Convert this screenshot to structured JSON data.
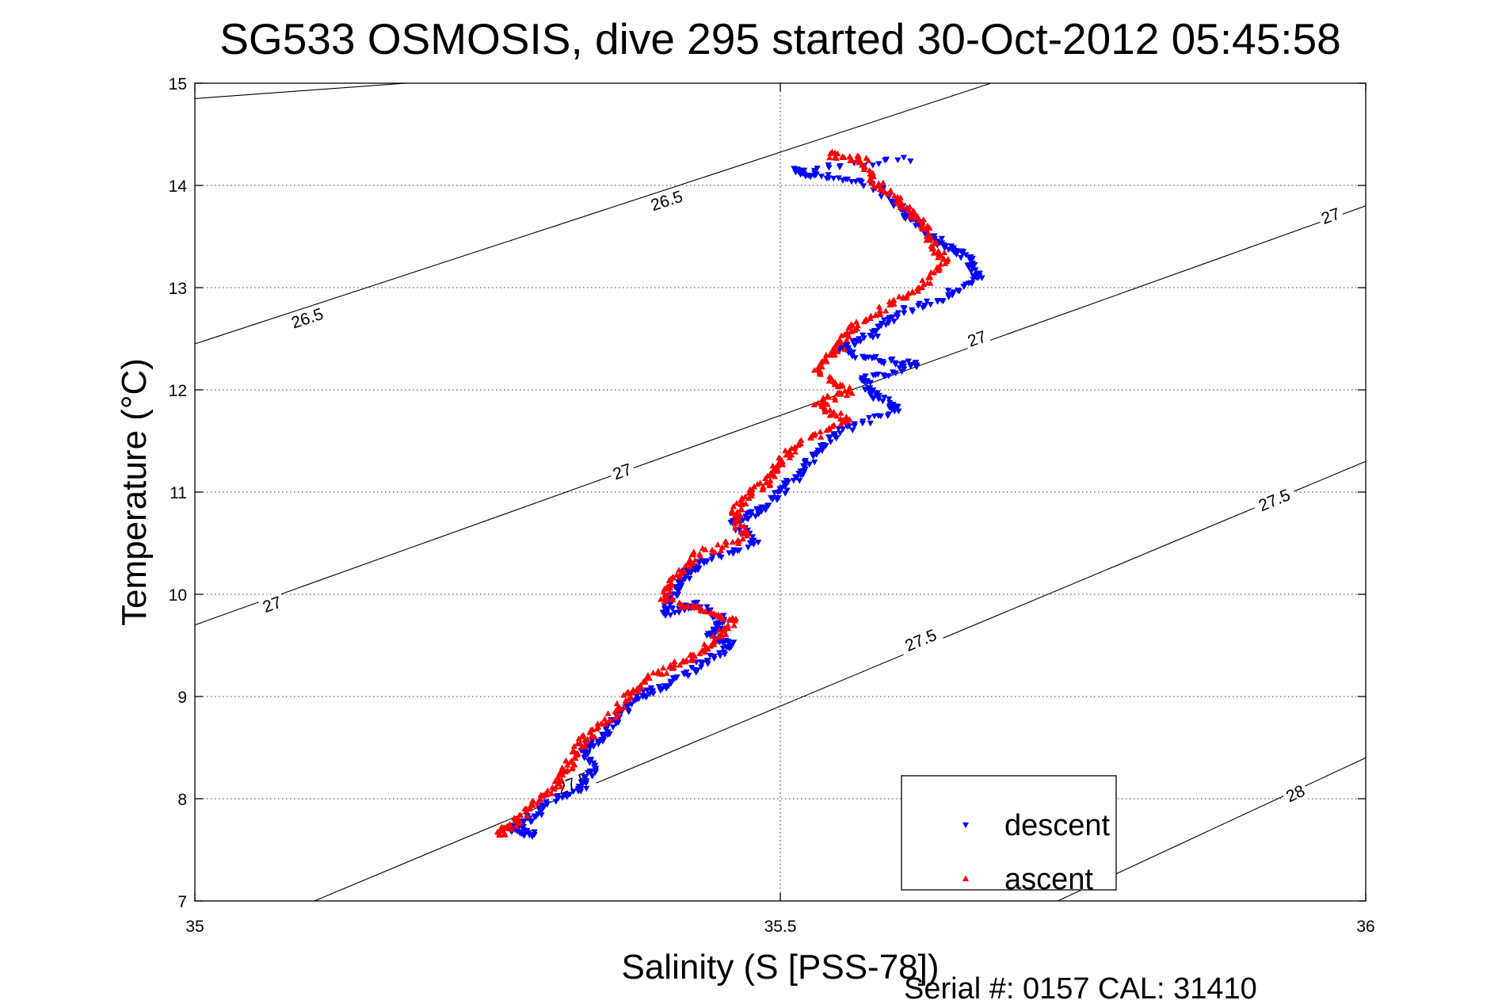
{
  "chart_data": {
    "type": "scatter",
    "title": "SG533 OSMOSIS, dive 295 started 30-Oct-2012 05:45:58",
    "xlabel": "Salinity (S [PSS-78])",
    "ylabel": "Temperature (°C)",
    "xlim": [
      35,
      36
    ],
    "ylim": [
      7,
      15
    ],
    "x_ticks": [
      35,
      35.5,
      36
    ],
    "x_tick_labels": [
      "35",
      "35.5",
      "36"
    ],
    "y_ticks": [
      7,
      8,
      9,
      10,
      11,
      12,
      13,
      14,
      15
    ],
    "y_tick_labels": [
      "7",
      "8",
      "9",
      "10",
      "11",
      "12",
      "13",
      "14",
      "15"
    ],
    "grid": true,
    "legend_position": "bottom-right",
    "footer": "Serial #: 0157  CAL: 31410",
    "density_contours": [
      {
        "sigma": 26.5,
        "points": [
          [
            35.0,
            14.85
          ],
          [
            35.18,
            15.0
          ]
        ],
        "labels": []
      },
      {
        "sigma": 26.5,
        "points": [
          [
            35.0,
            12.45
          ],
          [
            35.68,
            15.0
          ]
        ],
        "labels": [
          {
            "text": "26.5",
            "x": 35.096,
            "y": 12.7
          },
          {
            "text": "26.5",
            "x": 35.403,
            "y": 13.85
          }
        ]
      },
      {
        "sigma": 27,
        "points": [
          [
            35.0,
            9.7
          ],
          [
            36.0,
            13.8
          ]
        ],
        "labels": [
          {
            "text": "27",
            "x": 35.066,
            "y": 9.9
          },
          {
            "text": "27",
            "x": 35.365,
            "y": 11.2
          },
          {
            "text": "27",
            "x": 35.668,
            "y": 12.5
          },
          {
            "text": "27",
            "x": 35.97,
            "y": 13.7
          }
        ]
      },
      {
        "sigma": 27.5,
        "points": [
          [
            35.102,
            7.0
          ],
          [
            36.0,
            11.3
          ]
        ],
        "labels": [
          {
            "text": "27.5",
            "x": 35.323,
            "y": 8.15
          },
          {
            "text": "27.5",
            "x": 35.62,
            "y": 9.55
          },
          {
            "text": "27.5",
            "x": 35.922,
            "y": 10.92
          }
        ]
      },
      {
        "sigma": 28,
        "points": [
          [
            35.737,
            7.0
          ],
          [
            36.0,
            8.4
          ]
        ],
        "labels": [
          {
            "text": "28",
            "x": 35.94,
            "y": 8.05
          }
        ]
      }
    ],
    "series": [
      {
        "name": "descent",
        "color": "#0000ff",
        "marker": "triangle-down",
        "path": [
          [
            35.61,
            14.25
          ],
          [
            35.51,
            14.15
          ],
          [
            35.53,
            14.1
          ],
          [
            35.58,
            14.0
          ],
          [
            35.6,
            13.8
          ],
          [
            35.62,
            13.6
          ],
          [
            35.64,
            13.4
          ],
          [
            35.66,
            13.3
          ],
          [
            35.67,
            13.1
          ],
          [
            35.64,
            12.9
          ],
          [
            35.6,
            12.75
          ],
          [
            35.58,
            12.55
          ],
          [
            35.55,
            12.4
          ],
          [
            35.58,
            12.3
          ],
          [
            35.62,
            12.25
          ],
          [
            35.57,
            12.1
          ],
          [
            35.58,
            11.95
          ],
          [
            35.6,
            11.8
          ],
          [
            35.55,
            11.6
          ],
          [
            35.53,
            11.4
          ],
          [
            35.52,
            11.2
          ],
          [
            35.5,
            11.0
          ],
          [
            35.48,
            10.8
          ],
          [
            35.46,
            10.7
          ],
          [
            35.48,
            10.5
          ],
          [
            35.43,
            10.3
          ],
          [
            35.42,
            10.2
          ],
          [
            35.41,
            10.0
          ],
          [
            35.4,
            9.8
          ],
          [
            35.43,
            9.9
          ],
          [
            35.45,
            9.75
          ],
          [
            35.44,
            9.6
          ],
          [
            35.46,
            9.5
          ],
          [
            35.43,
            9.3
          ],
          [
            35.4,
            9.1
          ],
          [
            35.38,
            9.0
          ],
          [
            35.36,
            8.8
          ],
          [
            35.35,
            8.6
          ],
          [
            35.33,
            8.5
          ],
          [
            35.34,
            8.3
          ],
          [
            35.33,
            8.1
          ],
          [
            35.3,
            7.95
          ],
          [
            35.28,
            7.75
          ],
          [
            35.27,
            7.7
          ],
          [
            35.29,
            7.65
          ]
        ]
      },
      {
        "name": "ascent",
        "color": "#ff0000",
        "marker": "triangle-up",
        "path": [
          [
            35.54,
            14.3
          ],
          [
            35.57,
            14.25
          ],
          [
            35.58,
            14.05
          ],
          [
            35.6,
            13.85
          ],
          [
            35.62,
            13.65
          ],
          [
            35.63,
            13.45
          ],
          [
            35.64,
            13.25
          ],
          [
            35.62,
            13.0
          ],
          [
            35.59,
            12.8
          ],
          [
            35.56,
            12.6
          ],
          [
            35.55,
            12.4
          ],
          [
            35.53,
            12.2
          ],
          [
            35.56,
            12.0
          ],
          [
            35.53,
            11.85
          ],
          [
            35.56,
            11.7
          ],
          [
            35.52,
            11.5
          ],
          [
            35.5,
            11.3
          ],
          [
            35.49,
            11.1
          ],
          [
            35.47,
            10.95
          ],
          [
            35.46,
            10.8
          ],
          [
            35.47,
            10.55
          ],
          [
            35.43,
            10.4
          ],
          [
            35.41,
            10.15
          ],
          [
            35.4,
            9.95
          ],
          [
            35.43,
            9.85
          ],
          [
            35.46,
            9.75
          ],
          [
            35.44,
            9.5
          ],
          [
            35.42,
            9.35
          ],
          [
            35.39,
            9.2
          ],
          [
            35.37,
            9.0
          ],
          [
            35.35,
            8.75
          ],
          [
            35.33,
            8.55
          ],
          [
            35.32,
            8.35
          ],
          [
            35.31,
            8.15
          ],
          [
            35.29,
            7.95
          ],
          [
            35.27,
            7.75
          ],
          [
            35.26,
            7.65
          ]
        ]
      }
    ]
  }
}
